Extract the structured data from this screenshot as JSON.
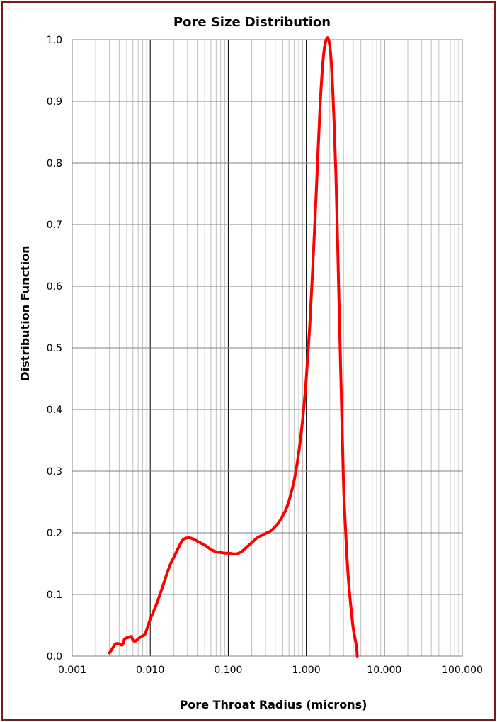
{
  "chart_data": {
    "type": "line",
    "title": "Pore Size Distribution",
    "xlabel": "Pore Throat Radius (microns)",
    "ylabel": "Distribution Function",
    "x_scale": "log",
    "xlim": [
      0.001,
      100
    ],
    "ylim": [
      0,
      1
    ],
    "x_ticks": [
      "0.001",
      "0.010",
      "0.100",
      "1.000",
      "10.000",
      "100.000"
    ],
    "y_ticks": [
      "0.0",
      "0.1",
      "0.2",
      "0.3",
      "0.4",
      "0.5",
      "0.6",
      "0.7",
      "0.8",
      "0.9",
      "1.0"
    ],
    "grid": true,
    "legend": "none",
    "series": [
      {
        "color": "#ff0000",
        "x": [
          0.003,
          0.0033,
          0.0036,
          0.004,
          0.0044,
          0.0047,
          0.0052,
          0.0057,
          0.006,
          0.0064,
          0.007,
          0.0077,
          0.0085,
          0.0092,
          0.01,
          0.011,
          0.0125,
          0.014,
          0.016,
          0.018,
          0.02,
          0.023,
          0.026,
          0.03,
          0.034,
          0.038,
          0.042,
          0.05,
          0.06,
          0.07,
          0.08,
          0.09,
          0.1,
          0.115,
          0.13,
          0.15,
          0.17,
          0.2,
          0.23,
          0.27,
          0.3,
          0.35,
          0.4,
          0.45,
          0.5,
          0.55,
          0.6,
          0.7,
          0.8,
          0.9,
          1.0,
          1.1,
          1.2,
          1.35,
          1.5,
          1.65,
          1.8,
          1.95,
          2.1,
          2.25,
          2.4,
          2.6,
          2.8,
          3.0,
          3.2,
          3.4,
          3.6,
          3.8,
          4.0,
          4.2,
          4.4,
          4.5
        ],
        "y": [
          0.005,
          0.013,
          0.02,
          0.02,
          0.018,
          0.028,
          0.03,
          0.032,
          0.026,
          0.024,
          0.028,
          0.032,
          0.035,
          0.046,
          0.06,
          0.072,
          0.09,
          0.108,
          0.13,
          0.148,
          0.16,
          0.176,
          0.188,
          0.192,
          0.191,
          0.188,
          0.185,
          0.18,
          0.173,
          0.169,
          0.168,
          0.167,
          0.167,
          0.166,
          0.166,
          0.17,
          0.176,
          0.184,
          0.191,
          0.196,
          0.199,
          0.203,
          0.21,
          0.218,
          0.228,
          0.238,
          0.252,
          0.285,
          0.33,
          0.385,
          0.45,
          0.53,
          0.62,
          0.76,
          0.89,
          0.97,
          1.0,
          0.998,
          0.96,
          0.88,
          0.78,
          0.6,
          0.43,
          0.28,
          0.2,
          0.14,
          0.1,
          0.07,
          0.045,
          0.03,
          0.015,
          0.0
        ]
      }
    ]
  }
}
